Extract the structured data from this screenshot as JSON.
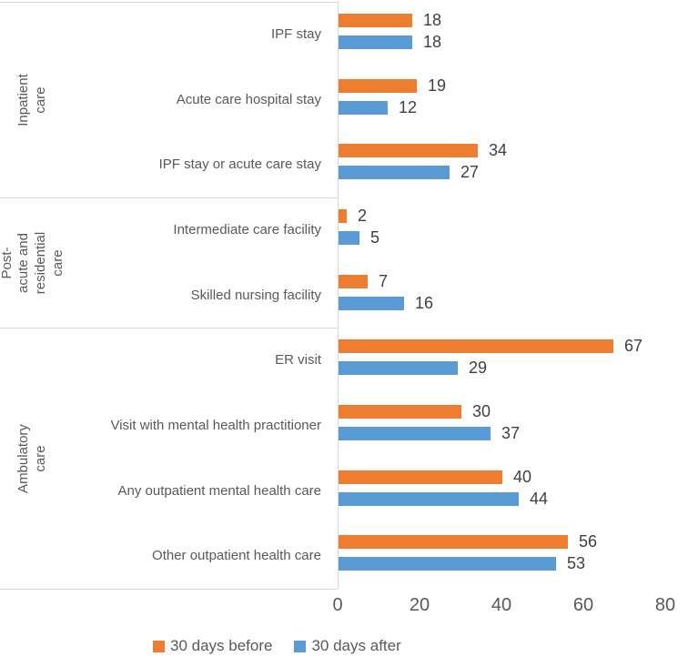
{
  "chart_data": {
    "type": "bar",
    "orientation": "horizontal",
    "title": "",
    "xlabel": "",
    "ylabel": "",
    "grid": false,
    "legend_position": "bottom",
    "xlim": [
      0,
      80
    ],
    "x_ticks": [
      0,
      20,
      40,
      60,
      80
    ],
    "groups": [
      {
        "label": "Inpatient care",
        "categories": [
          "IPF stay",
          "Acute care hospital stay",
          "IPF stay or acute care stay"
        ]
      },
      {
        "label": "Post-acute and\nresidential care",
        "categories": [
          "Intermediate care facility",
          "Skilled nursing facility"
        ]
      },
      {
        "label": "Ambulatory care",
        "categories": [
          "ER visit",
          "Visit with mental health practitioner",
          "Any outpatient mental health care",
          "Other outpatient health care"
        ]
      }
    ],
    "series": [
      {
        "name": "30 days before",
        "color": "#ED7D31",
        "values": [
          18,
          19,
          34,
          2,
          7,
          67,
          30,
          40,
          56
        ]
      },
      {
        "name": "30 days after",
        "color": "#5B9BD5",
        "values": [
          18,
          12,
          27,
          5,
          16,
          29,
          37,
          44,
          53
        ]
      }
    ],
    "colors": {
      "axis_line": "#D9D9D9",
      "axis_text": "#595959",
      "value_label_text": "#404040",
      "background": "#FFFFFF"
    }
  }
}
